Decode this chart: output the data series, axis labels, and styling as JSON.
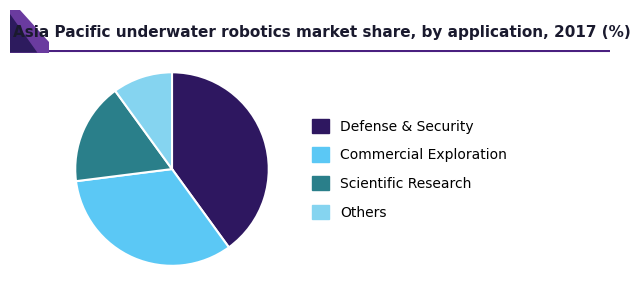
{
  "title": "Asia Pacific underwater robotics market share, by application, 2017 (%)",
  "slices": [
    {
      "label": "Defense & Security",
      "value": 40,
      "color": "#2e1760"
    },
    {
      "label": "Commercial Exploration",
      "value": 33,
      "color": "#5bc8f5"
    },
    {
      "label": "Scientific Research",
      "value": 17,
      "color": "#2a7f8a"
    },
    {
      "label": "Others",
      "value": 10,
      "color": "#85d4f0"
    }
  ],
  "title_fontsize": 11,
  "legend_fontsize": 10,
  "background_color": "#ffffff",
  "title_color": "#1a1a2e",
  "edge_color": "#ffffff",
  "line_color": "#4a2080",
  "corner_color1": "#6a3b9f",
  "corner_color2": "#2d1b5e",
  "startangle": 90
}
